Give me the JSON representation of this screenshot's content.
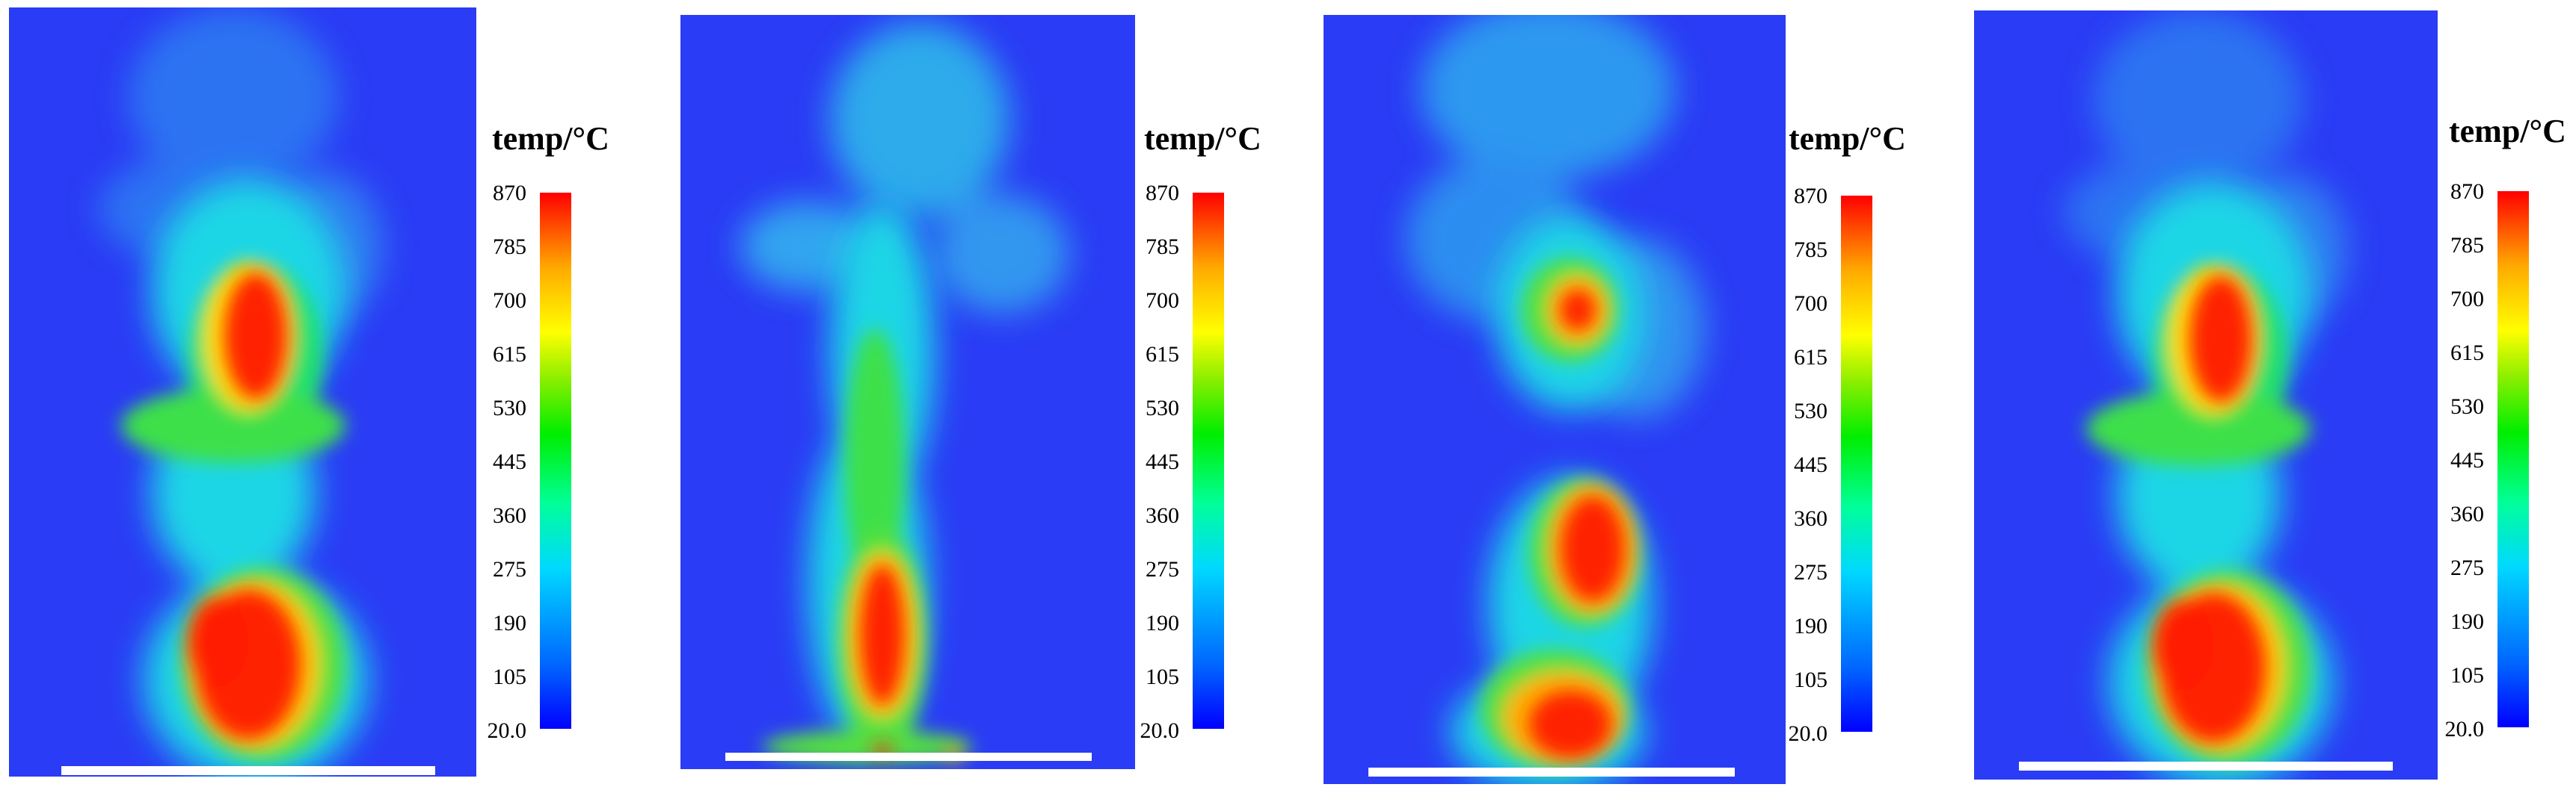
{
  "panels": [
    {
      "title": "temp/°C",
      "ticks": [
        "870",
        "785",
        "700",
        "615",
        "530",
        "445",
        "360",
        "275",
        "190",
        "105",
        "20.0"
      ]
    },
    {
      "title": "temp/°C",
      "ticks": [
        "870",
        "785",
        "700",
        "615",
        "530",
        "445",
        "360",
        "275",
        "190",
        "105",
        "20.0"
      ]
    },
    {
      "title": "temp/°C",
      "ticks": [
        "870",
        "785",
        "700",
        "615",
        "530",
        "445",
        "360",
        "275",
        "190",
        "105",
        "20.0"
      ]
    },
    {
      "title": "temp/°C",
      "ticks": [
        "870",
        "785",
        "700",
        "615",
        "530",
        "445",
        "360",
        "275",
        "190",
        "105",
        "20.0"
      ]
    }
  ],
  "colors": {
    "background_field": "#2a3cf5",
    "low": "#0000ff",
    "cyan": "#00d9ff",
    "green": "#00ee00",
    "yellow": "#ffff00",
    "red": "#ff1a00",
    "scale_bar": "#ffffff"
  }
}
